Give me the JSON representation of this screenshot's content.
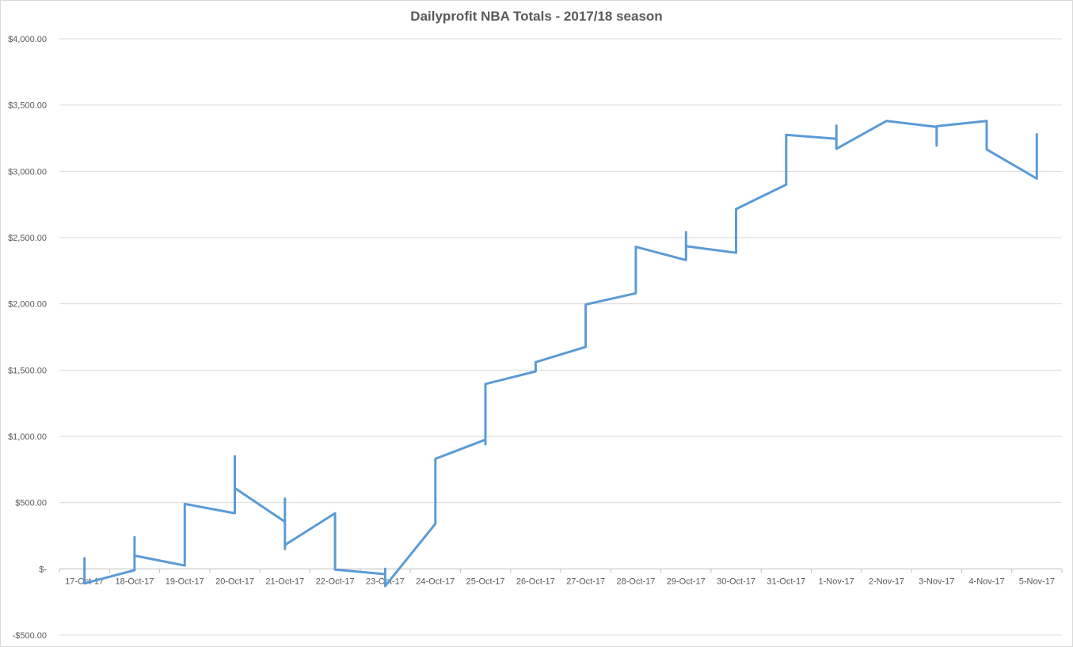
{
  "chart_data": {
    "type": "line",
    "title": "Dailyprofit NBA Totals - 2017/18 season",
    "xlabel": "",
    "ylabel": "",
    "ylim": [
      -500,
      4000
    ],
    "grid": true,
    "legend": "none",
    "line_color": "#5b9bd5",
    "y_ticks": [
      {
        "value": 4000,
        "label": "$4,000.00"
      },
      {
        "value": 3500,
        "label": "$3,500.00"
      },
      {
        "value": 3000,
        "label": "$3,000.00"
      },
      {
        "value": 2500,
        "label": "$2,500.00"
      },
      {
        "value": 2000,
        "label": "$2,000.00"
      },
      {
        "value": 1500,
        "label": "$1,500.00"
      },
      {
        "value": 1000,
        "label": "$1,000.00"
      },
      {
        "value": 500,
        "label": "$500.00"
      },
      {
        "value": 0,
        "label": "$-"
      },
      {
        "value": -500,
        "label": "-$500.00"
      }
    ],
    "categories": [
      "17-Oct-17",
      "18-Oct-17",
      "19-Oct-17",
      "20-Oct-17",
      "21-Oct-17",
      "22-Oct-17",
      "23-Oct-17",
      "24-Oct-17",
      "25-Oct-17",
      "26-Oct-17",
      "27-Oct-17",
      "28-Oct-17",
      "29-Oct-17",
      "30-Oct-17",
      "31-Oct-17",
      "1-Nov-17",
      "2-Nov-17",
      "3-Nov-17",
      "4-Nov-17",
      "5-Nov-17"
    ],
    "series": [
      {
        "values": [
          [
            "17-Oct-17",
            80
          ],
          [
            "17-Oct-17",
            -110
          ],
          [
            "18-Oct-17",
            -10
          ],
          [
            "18-Oct-17",
            240
          ],
          [
            "18-Oct-17",
            100
          ],
          [
            "19-Oct-17",
            25
          ],
          [
            "19-Oct-17",
            490
          ],
          [
            "20-Oct-17",
            420
          ],
          [
            "20-Oct-17",
            850
          ],
          [
            "20-Oct-17",
            610
          ],
          [
            "21-Oct-17",
            355
          ],
          [
            "21-Oct-17",
            530
          ],
          [
            "21-Oct-17",
            150
          ],
          [
            "21-Oct-17",
            180
          ],
          [
            "22-Oct-17",
            420
          ],
          [
            "22-Oct-17",
            -5
          ],
          [
            "23-Oct-17",
            -40
          ],
          [
            "23-Oct-17",
            0
          ],
          [
            "23-Oct-17",
            -130
          ],
          [
            "24-Oct-17",
            340
          ],
          [
            "24-Oct-17",
            830
          ],
          [
            "25-Oct-17",
            975
          ],
          [
            "25-Oct-17",
            940
          ],
          [
            "25-Oct-17",
            1395
          ],
          [
            "26-Oct-17",
            1490
          ],
          [
            "26-Oct-17",
            1560
          ],
          [
            "27-Oct-17",
            1675
          ],
          [
            "27-Oct-17",
            1995
          ],
          [
            "28-Oct-17",
            2080
          ],
          [
            "28-Oct-17",
            2430
          ],
          [
            "29-Oct-17",
            2330
          ],
          [
            "29-Oct-17",
            2540
          ],
          [
            "29-Oct-17",
            2435
          ],
          [
            "30-Oct-17",
            2385
          ],
          [
            "30-Oct-17",
            2715
          ],
          [
            "31-Oct-17",
            2900
          ],
          [
            "31-Oct-17",
            3275
          ],
          [
            "1-Nov-17",
            3245
          ],
          [
            "1-Nov-17",
            3345
          ],
          [
            "1-Nov-17",
            3170
          ],
          [
            "2-Nov-17",
            3380
          ],
          [
            "3-Nov-17",
            3335
          ],
          [
            "3-Nov-17",
            3195
          ],
          [
            "3-Nov-17",
            3340
          ],
          [
            "4-Nov-17",
            3380
          ],
          [
            "4-Nov-17",
            3165
          ],
          [
            "5-Nov-17",
            2945
          ],
          [
            "5-Nov-17",
            3280
          ]
        ]
      }
    ]
  }
}
